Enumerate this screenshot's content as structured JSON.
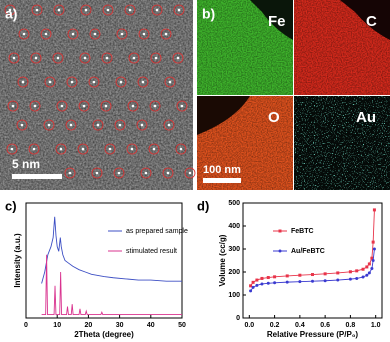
{
  "panels": {
    "a": {
      "label": "a)",
      "scale_bar": "5 nm"
    },
    "b": {
      "label": "b)",
      "maps": [
        "Fe",
        "C",
        "O",
        "Au"
      ],
      "scale_bar": "100 nm"
    }
  },
  "chart_data": [
    {
      "type": "line",
      "panel_label": "c)",
      "x_label": "2Theta (degree)",
      "y_label": "Intensity (a.u.)",
      "xlim": [
        0,
        50
      ],
      "xticks": [
        0,
        10,
        20,
        30,
        40,
        50
      ],
      "ylim": [
        0,
        100
      ],
      "series": [
        {
          "name": "as prepared sample",
          "color": "#3d4fc4",
          "x": [
            5,
            6,
            7,
            8,
            8.7,
            9.2,
            9.6,
            10,
            10.5,
            11,
            11.3,
            11.8,
            12.5,
            13.5,
            15,
            17,
            19,
            21,
            23,
            25,
            28,
            32,
            36,
            40,
            45,
            50
          ],
          "values": [
            30,
            40,
            55,
            62,
            70,
            88,
            72,
            62,
            58,
            70,
            62,
            55,
            50,
            48,
            45,
            42,
            40,
            38,
            37,
            36,
            35,
            34,
            33,
            33,
            32,
            32
          ]
        },
        {
          "name": "stimulated result",
          "color": "#d9338f",
          "x": [
            5,
            6.3,
            6.6,
            6.9,
            7.3,
            9,
            9.3,
            9.6,
            10.8,
            11.1,
            11.4,
            13,
            13.3,
            13.6,
            14.5,
            14.8,
            15.1,
            17,
            17.3,
            17.6,
            19,
            19.3,
            19.6,
            24,
            24.3,
            24.6,
            30,
            50
          ],
          "values": [
            3,
            3,
            55,
            3,
            3,
            3,
            28,
            3,
            3,
            40,
            3,
            3,
            10,
            3,
            3,
            12,
            3,
            3,
            8,
            3,
            3,
            6,
            3,
            3,
            5,
            3,
            3,
            3
          ]
        }
      ]
    },
    {
      "type": "line",
      "panel_label": "d)",
      "x_label": "Relative Pressure (P/P₀)",
      "y_label": "Volume (cc/g)",
      "xlim": [
        -0.05,
        1.05
      ],
      "xticks": [
        {
          "value": 0,
          "label": "0.0"
        },
        {
          "value": 0.2,
          "label": "0.2"
        },
        {
          "value": 0.4,
          "label": "0.4"
        },
        {
          "value": 0.6,
          "label": "0.6"
        },
        {
          "value": 0.8,
          "label": "0.8"
        },
        {
          "value": 1,
          "label": "1.0"
        }
      ],
      "ylim": [
        0,
        500
      ],
      "yticks": [
        0,
        100,
        200,
        300,
        400,
        500
      ],
      "series": [
        {
          "name": "FeBTC",
          "color": "#e8344a",
          "marker": "square",
          "x": [
            0.01,
            0.03,
            0.06,
            0.1,
            0.15,
            0.2,
            0.3,
            0.4,
            0.5,
            0.6,
            0.7,
            0.8,
            0.85,
            0.9,
            0.93,
            0.95,
            0.97,
            0.98,
            0.99
          ],
          "values": [
            140,
            155,
            165,
            172,
            176,
            179,
            183,
            186,
            189,
            192,
            196,
            201,
            205,
            212,
            222,
            235,
            260,
            330,
            470
          ]
        },
        {
          "name": "Au/FeBTC",
          "color": "#3a3ad0",
          "marker": "circle",
          "x": [
            0.01,
            0.03,
            0.06,
            0.1,
            0.15,
            0.2,
            0.3,
            0.4,
            0.5,
            0.6,
            0.7,
            0.8,
            0.85,
            0.9,
            0.93,
            0.95,
            0.97,
            0.98,
            0.99
          ],
          "values": [
            118,
            133,
            142,
            148,
            151,
            153,
            156,
            158,
            160,
            162,
            165,
            169,
            172,
            178,
            186,
            196,
            215,
            250,
            300
          ]
        }
      ]
    }
  ]
}
